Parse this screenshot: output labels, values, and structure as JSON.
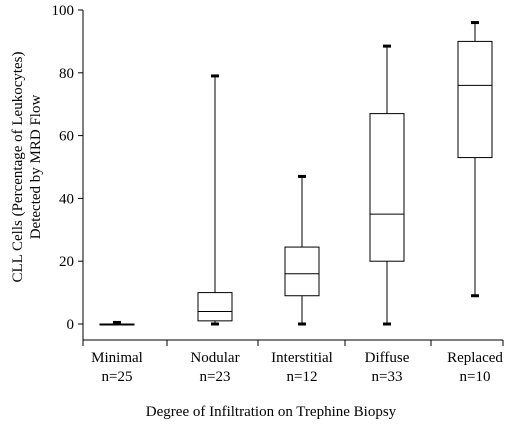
{
  "chart_data": {
    "type": "boxplot",
    "ylabel_lines": [
      "CLL Cells (Percentage of Leukocytes)",
      "Detected by MRD Flow"
    ],
    "xlabel": "Degree of Infiltration on Trephine Biopsy",
    "ylim": [
      0,
      100
    ],
    "yticks": [
      0,
      20,
      40,
      60,
      80,
      100
    ],
    "categories": [
      {
        "label": "Minimal",
        "n": "n=25",
        "min": 0,
        "q1": 0,
        "median": 0,
        "q3": 0,
        "max": 0.5
      },
      {
        "label": "Nodular",
        "n": "n=23",
        "min": 0,
        "q1": 1,
        "median": 4,
        "q3": 10,
        "max": 79
      },
      {
        "label": "Interstitial",
        "n": "n=12",
        "min": 0,
        "q1": 9,
        "median": 16,
        "q3": 24.5,
        "max": 47
      },
      {
        "label": "Diffuse",
        "n": "n=33",
        "min": 0,
        "q1": 20,
        "median": 35,
        "q3": 67,
        "max": 88.5
      },
      {
        "label": "Replaced",
        "n": "n=10",
        "min": 9,
        "q1": 53,
        "median": 76,
        "q3": 90,
        "max": 96
      }
    ],
    "grid": false,
    "legend": "none"
  }
}
